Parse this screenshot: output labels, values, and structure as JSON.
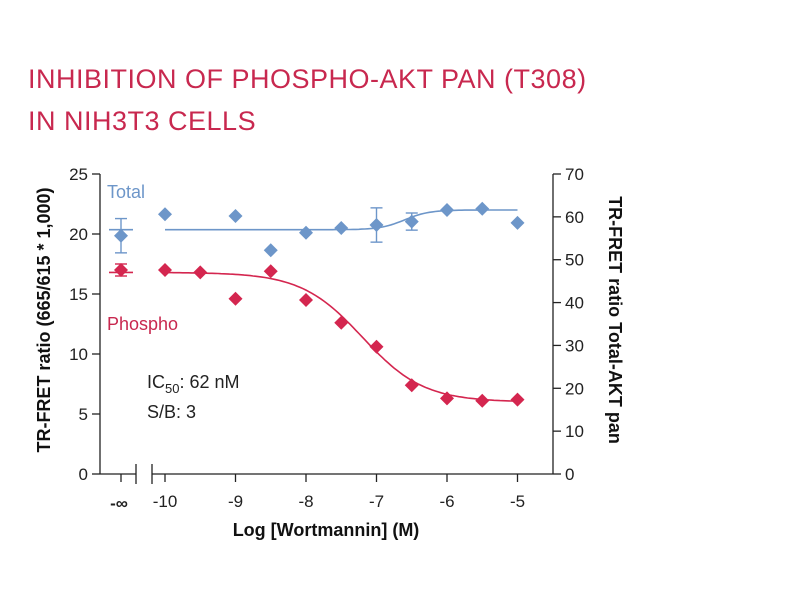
{
  "title_line1": "INHIBITION OF PHOSPHO-AKT PAN (T308)",
  "title_line2": "IN NIH3T3 CELLS",
  "chart_data": {
    "type": "scatter",
    "xlabel": "Log [Wortmannin] (M)",
    "ylabel_left": "TR-FRET ratio (665/615 * 1,000)",
    "ylabel_right": "TR-FRET ratio Total-AKT pan",
    "xlim": [
      -10.3,
      -4.8
    ],
    "ylim_left": [
      0,
      25
    ],
    "ylim_right": [
      0,
      70
    ],
    "x_ticks": [
      "-10",
      "-9",
      "-8",
      "-7",
      "-6",
      "-5"
    ],
    "x_tick_values": [
      -10,
      -9,
      -8,
      -7,
      -6,
      -5
    ],
    "x_control_label": "-∞",
    "y_left_ticks": [
      "0",
      "5",
      "10",
      "15",
      "20",
      "25"
    ],
    "y_left_tick_values": [
      0,
      5,
      10,
      15,
      20,
      25
    ],
    "y_right_ticks": [
      "0",
      "10",
      "20",
      "30",
      "40",
      "50",
      "60",
      "70"
    ],
    "y_right_tick_values": [
      0,
      10,
      20,
      30,
      40,
      50,
      60,
      70
    ],
    "series": [
      {
        "name": "Phospho",
        "axis": "left",
        "color": "#d4264f",
        "control": {
          "y": 17.0,
          "err": 0.5
        },
        "x": [
          -10,
          -9.5,
          -9,
          -8.5,
          -8,
          -7.5,
          -7,
          -6.5,
          -6,
          -5.5,
          -5
        ],
        "y": [
          17.0,
          16.8,
          14.6,
          16.9,
          14.5,
          12.6,
          10.6,
          7.4,
          6.3,
          6.1,
          6.2
        ],
        "fit": {
          "top": 16.8,
          "bottom": 6.0,
          "log_ic50": -7.2,
          "hill": 1.0
        }
      },
      {
        "name": "Total",
        "axis": "right",
        "color": "#6d96c9",
        "control": {
          "y": 55.6,
          "err": 4.0
        },
        "x": [
          -10,
          -9,
          -8.5,
          -8,
          -7.5,
          -7,
          -6.5,
          -6,
          -5.5,
          -5
        ],
        "y": [
          60.6,
          60.2,
          52.2,
          56.3,
          57.4,
          58.1,
          58.9,
          61.6,
          61.9,
          58.6
        ],
        "errs": [
          0,
          0,
          0,
          0,
          0,
          4.0,
          2.0,
          0,
          0,
          0
        ],
        "fit_level": 57.0,
        "fit_rise_end": 61.6
      }
    ],
    "annotations": {
      "ic50_prefix": "IC",
      "ic50_sub": "50",
      "ic50_value": ": 62 nM",
      "sb": "S/B: 3"
    }
  }
}
